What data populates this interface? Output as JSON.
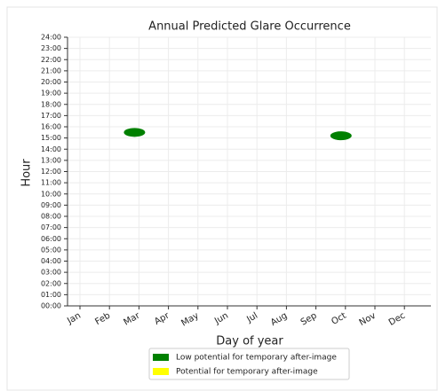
{
  "chart_data": {
    "type": "scatter",
    "title": "Annual Predicted Glare Occurrence",
    "x_label": "Day of year",
    "y_label": "Hour",
    "categories": [
      "Jan",
      "Feb",
      "Mar",
      "Apr",
      "May",
      "Jun",
      "Jul",
      "Aug",
      "Sep",
      "Oct",
      "Nov",
      "Dec"
    ],
    "series": [
      {
        "name": "Low potential for temporary after-image",
        "color": "#008000",
        "x": [
          "Mar",
          "Oct"
        ],
        "values": [
          15.5,
          15.2
        ]
      },
      {
        "name": "Potential for temporary after-image",
        "color": "#ffff00",
        "x": [],
        "values": []
      }
    ],
    "ylim": [
      0,
      24
    ],
    "yticks": [
      {
        "value": 0,
        "label": "00:00"
      },
      {
        "value": 1,
        "label": "01:00"
      },
      {
        "value": 2,
        "label": "02:00"
      },
      {
        "value": 3,
        "label": "03:00"
      },
      {
        "value": 4,
        "label": "04:00"
      },
      {
        "value": 5,
        "label": "05:00"
      },
      {
        "value": 6,
        "label": "06:00"
      },
      {
        "value": 7,
        "label": "07:00"
      },
      {
        "value": 8,
        "label": "08:00"
      },
      {
        "value": 9,
        "label": "09:00"
      },
      {
        "value": 10,
        "label": "10:00"
      },
      {
        "value": 11,
        "label": "11:00"
      },
      {
        "value": 12,
        "label": "12:00"
      },
      {
        "value": 13,
        "label": "13:00"
      },
      {
        "value": 14,
        "label": "14:00"
      },
      {
        "value": 15,
        "label": "15:00"
      },
      {
        "value": 16,
        "label": "16:00"
      },
      {
        "value": 17,
        "label": "17:00"
      },
      {
        "value": 18,
        "label": "18:00"
      },
      {
        "value": 19,
        "label": "19:00"
      },
      {
        "value": 20,
        "label": "20:00"
      },
      {
        "value": 21,
        "label": "21:00"
      },
      {
        "value": 22,
        "label": "22:00"
      },
      {
        "value": 23,
        "label": "23:00"
      },
      {
        "value": 24,
        "label": "24:00"
      }
    ],
    "grid": true
  }
}
